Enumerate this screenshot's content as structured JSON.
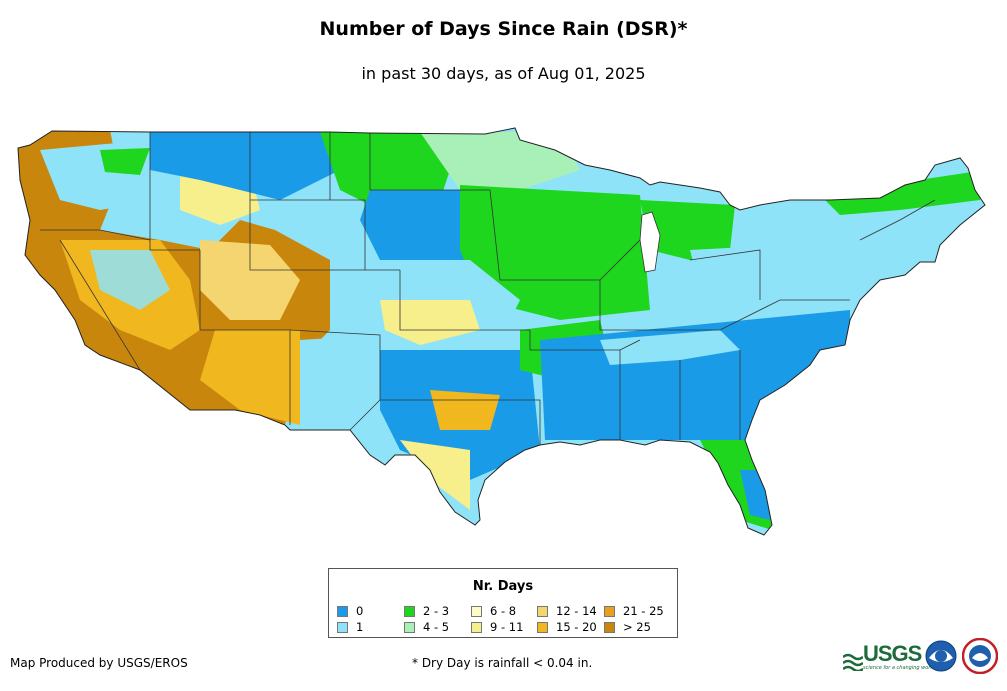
{
  "title": "Number of Days Since Rain (DSR)*",
  "subtitle": "in past 30 days, as of Aug 01, 2025",
  "legend": {
    "title": "Nr. Days",
    "items": [
      {
        "label": "0",
        "color": "#1a9be8"
      },
      {
        "label": "1",
        "color": "#8fe3f8"
      },
      {
        "label": "2 - 3",
        "color": "#1ed61e"
      },
      {
        "label": "4 - 5",
        "color": "#a8f0b8"
      },
      {
        "label": "6 - 8",
        "color": "#fdfbc8"
      },
      {
        "label": "9 - 11",
        "color": "#f7ef8c"
      },
      {
        "label": "12 - 14",
        "color": "#f5d570"
      },
      {
        "label": "15 - 20",
        "color": "#f0b71e"
      },
      {
        "label": "21 - 25",
        "color": "#e8a020"
      },
      {
        "label": "> 25",
        "color": "#c8860c"
      }
    ]
  },
  "credit": "Map Produced by USGS/EROS",
  "footnote": "* Dry Day is rainfall < 0.04 in.",
  "logos": {
    "usgs_text": "USGS",
    "usgs_tagline": "science for a changing world"
  }
}
